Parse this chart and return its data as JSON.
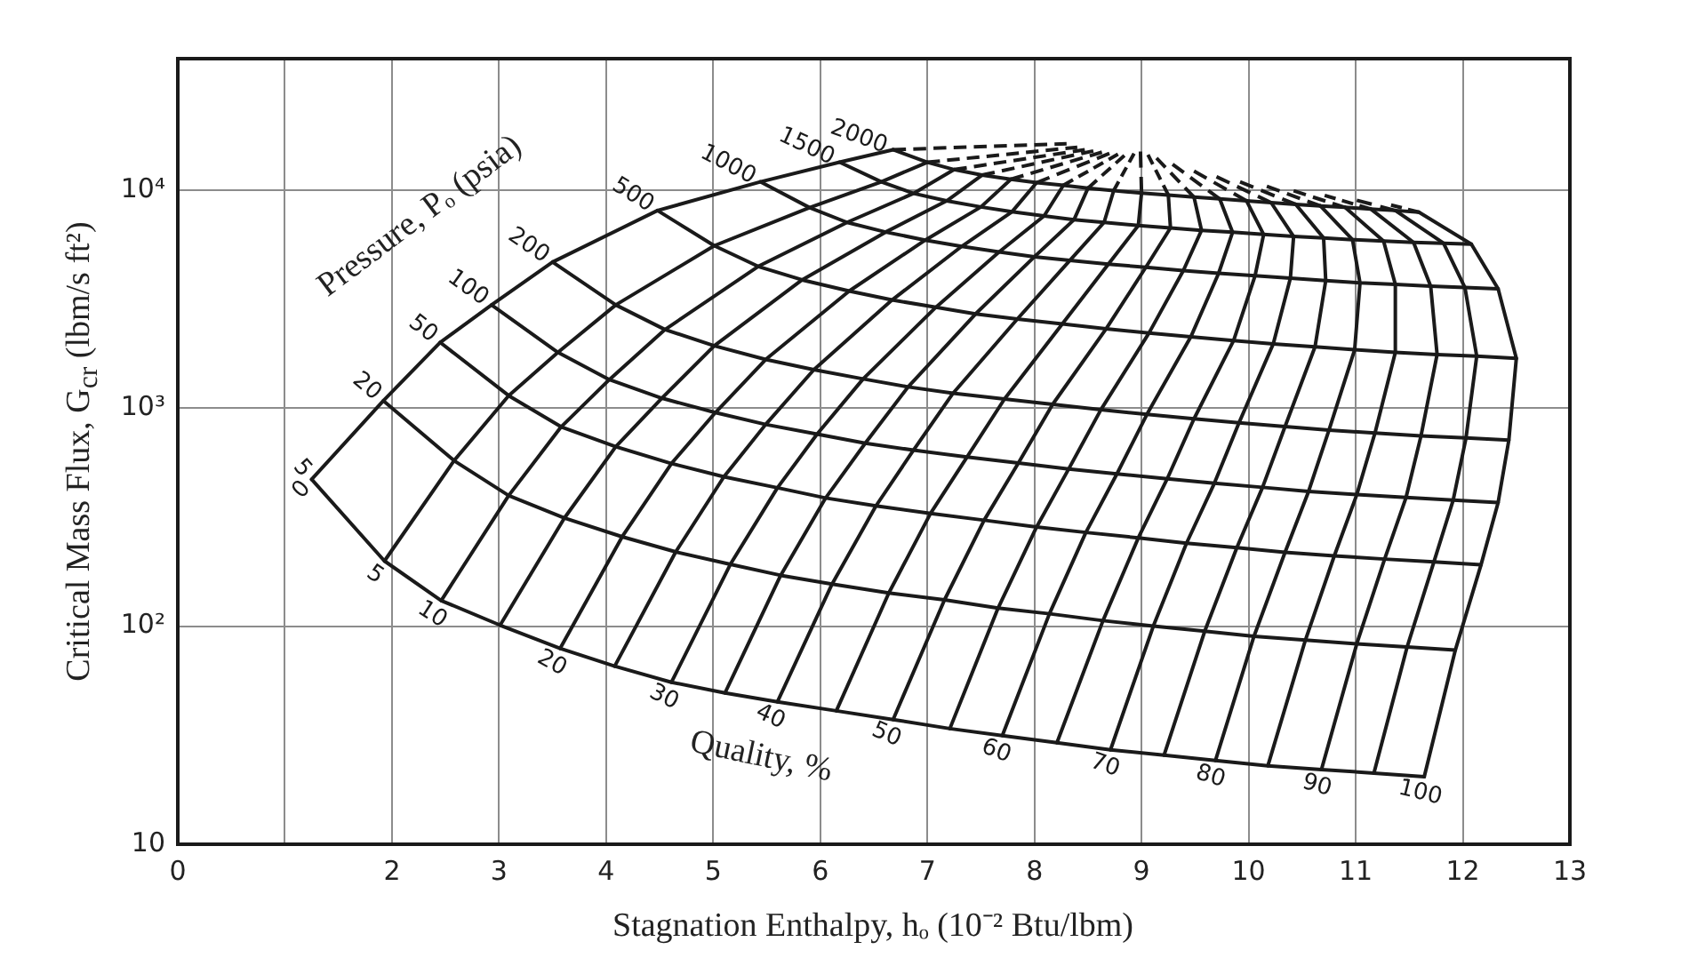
{
  "chart_data": {
    "type": "line",
    "log": "y",
    "grid": true,
    "line_style": "solid",
    "xlabel": "Stagnation Enthalpy, hₒ (10⁻² Btu/lbm)",
    "ylabel": "Critical Mass Flux, G$_{cr}$ (lbm/s ft²)",
    "xlim": [
      0,
      13
    ],
    "ylim": [
      10,
      40000
    ],
    "xticks": [
      0,
      {
        "value": 1,
        "label": null
      },
      2,
      3,
      4,
      5,
      6,
      7,
      8,
      9,
      10,
      11,
      12,
      13
    ],
    "yticks": [
      10,
      {
        "value": 100,
        "label": "10²"
      },
      {
        "value": 1000,
        "label": "10³"
      },
      {
        "value": 10000,
        "label": "10⁴"
      }
    ],
    "annotations": [
      "Pressure, Pₒ (psia)",
      "Quality, %"
    ],
    "series": [
      {
        "color": "#1a1a1a",
        "line_style": "dashed",
        "x": [
          6.68,
          8.3
        ],
        "values": [
          15300,
          16300
        ]
      },
      {
        "color": "#1a1a1a",
        "line_style": "dashed",
        "x": [
          7.0,
          8.4
        ],
        "values": [
          13400,
          15700
        ]
      },
      {
        "color": "#1a1a1a",
        "line_style": "dashed",
        "x": [
          7.25,
          8.47
        ],
        "values": [
          12400,
          15300
        ]
      },
      {
        "color": "#1a1a1a",
        "line_style": "dashed",
        "x": [
          7.51,
          8.55
        ],
        "values": [
          11700,
          15100
        ]
      },
      {
        "color": "#1a1a1a",
        "line_style": "dashed",
        "x": [
          7.78,
          8.63
        ],
        "values": [
          11200,
          14900
        ]
      },
      {
        "color": "#1a1a1a",
        "line_style": "dashed",
        "x": [
          8.02,
          8.7
        ],
        "values": [
          10800,
          14700
        ]
      },
      {
        "color": "#1a1a1a",
        "line_style": "dashed",
        "x": [
          8.27,
          8.78
        ],
        "values": [
          10500,
          14600
        ]
      },
      {
        "color": "#1a1a1a",
        "line_style": "dashed",
        "x": [
          8.5,
          8.84
        ],
        "values": [
          10200,
          14400
        ]
      },
      {
        "color": "#1a1a1a",
        "line_style": "dashed",
        "x": [
          8.74,
          8.93
        ],
        "values": [
          9930,
          14700
        ]
      },
      {
        "color": "#1a1a1a",
        "line_style": "dashed",
        "x": [
          9.0,
          8.99
        ],
        "values": [
          9680,
          15000
        ]
      },
      {
        "color": "#1a1a1a",
        "line_style": "dashed",
        "x": [
          9.25,
          9.06
        ],
        "values": [
          9480,
          14500
        ]
      },
      {
        "color": "#1a1a1a",
        "line_style": "dashed",
        "x": [
          9.49,
          9.14
        ],
        "values": [
          9270,
          14000
        ]
      },
      {
        "color": "#1a1a1a",
        "line_style": "dashed",
        "x": [
          9.73,
          9.29
        ],
        "values": [
          9100,
          13100
        ]
      },
      {
        "color": "#1a1a1a",
        "line_style": "dashed",
        "x": [
          9.98,
          9.49
        ],
        "values": [
          8920,
          12200
        ]
      },
      {
        "color": "#1a1a1a",
        "line_style": "dashed",
        "x": [
          10.21,
          9.7
        ],
        "values": [
          8750,
          11500
        ]
      },
      {
        "color": "#1a1a1a",
        "line_style": "dashed",
        "x": [
          10.44,
          9.92
        ],
        "values": [
          8590,
          10900
        ]
      },
      {
        "color": "#1a1a1a",
        "line_style": "dashed",
        "x": [
          10.67,
          10.17
        ],
        "values": [
          8450,
          10400
        ]
      },
      {
        "color": "#1a1a1a",
        "line_style": "dashed",
        "x": [
          10.9,
          10.42
        ],
        "values": [
          8320,
          9910
        ]
      },
      {
        "color": "#1a1a1a",
        "line_style": "dashed",
        "x": [
          11.14,
          10.71
        ],
        "values": [
          8180,
          9440
        ]
      },
      {
        "color": "#1a1a1a",
        "line_style": "dashed",
        "x": [
          11.37,
          11.01
        ],
        "values": [
          8050,
          8970
        ]
      },
      {
        "color": "#1a1a1a",
        "line_style": "dashed",
        "x": [
          11.59,
          11.33
        ],
        "values": [
          7910,
          8530
        ]
      },
      {
        "name": "0",
        "color": "#1a1a1a",
        "x": [
          1.25,
          1.92,
          2.45,
          2.93,
          3.5,
          4.48,
          5.44,
          6.18,
          6.68
        ],
        "values": [
          471,
          1080,
          2000,
          2970,
          4670,
          8050,
          10900,
          13400,
          15300
        ]
      },
      {
        "name": "5",
        "color": "#1a1a1a",
        "x": [
          1.93,
          2.58,
          3.09,
          3.55,
          4.09,
          5.01,
          5.9,
          6.57,
          7.0
        ],
        "values": [
          199,
          574,
          1140,
          1800,
          2970,
          5550,
          8300,
          10900,
          13400
        ]
      },
      {
        "name": "10",
        "color": "#1a1a1a",
        "x": [
          2.46,
          3.09,
          3.58,
          4.03,
          4.55,
          5.42,
          6.25,
          6.87,
          7.25
        ],
        "values": [
          131,
          397,
          820,
          1350,
          2290,
          4460,
          7100,
          9640,
          12400
        ]
      },
      {
        "color": "#1a1a1a",
        "x": [
          3.01,
          3.61,
          4.09,
          4.52,
          5.01,
          5.83,
          6.61,
          7.18,
          7.51
        ],
        "values": [
          101,
          313,
          665,
          1110,
          1930,
          3870,
          6410,
          8910,
          11700
        ]
      },
      {
        "name": "20",
        "color": "#1a1a1a",
        "x": [
          3.57,
          4.15,
          4.61,
          5.02,
          5.49,
          6.27,
          6.98,
          7.5,
          7.78
        ],
        "values": [
          79,
          257,
          557,
          953,
          1670,
          3440,
          5890,
          8360,
          11200
        ]
      },
      {
        "color": "#1a1a1a",
        "x": [
          4.08,
          4.65,
          5.1,
          5.49,
          5.94,
          6.67,
          7.32,
          7.79,
          8.02
        ],
        "values": [
          65.5,
          219,
          484,
          841,
          1500,
          3130,
          5510,
          7940,
          10800
        ]
      },
      {
        "name": "30",
        "color": "#1a1a1a",
        "x": [
          4.61,
          5.16,
          5.6,
          5.97,
          6.4,
          7.08,
          7.67,
          8.09,
          8.27
        ],
        "values": [
          55.3,
          192,
          431,
          759,
          1360,
          2900,
          5200,
          7600,
          10500
        ]
      },
      {
        "color": "#1a1a1a",
        "x": [
          5.11,
          5.63,
          6.05,
          6.42,
          6.82,
          7.45,
          8.0,
          8.37,
          8.5
        ],
        "values": [
          49.4,
          171,
          387,
          690,
          1250,
          2700,
          4940,
          7310,
          10200
        ]
      },
      {
        "name": "40",
        "color": "#1a1a1a",
        "x": [
          5.6,
          6.11,
          6.52,
          6.87,
          7.24,
          7.84,
          8.33,
          8.65,
          8.74
        ],
        "values": [
          45.0,
          156,
          356,
          641,
          1170,
          2560,
          4750,
          7100,
          9930
        ]
      },
      {
        "color": "#1a1a1a",
        "x": [
          6.15,
          6.64,
          7.03,
          7.37,
          7.72,
          8.26,
          8.69,
          8.97,
          9.0
        ],
        "values": [
          40.9,
          142,
          329,
          596,
          1100,
          2430,
          4570,
          6870,
          9680
        ]
      },
      {
        "name": "50",
        "color": "#1a1a1a",
        "x": [
          6.68,
          7.16,
          7.53,
          7.85,
          8.17,
          8.67,
          9.04,
          9.27,
          9.25
        ],
        "values": [
          37.3,
          132,
          306,
          560,
          1040,
          2310,
          4420,
          6700,
          9480
        ]
      },
      {
        "color": "#1a1a1a",
        "x": [
          7.21,
          7.66,
          8.02,
          8.32,
          8.62,
          9.07,
          9.39,
          9.56,
          9.49
        ],
        "values": [
          33.9,
          121,
          285,
          526,
          982,
          2210,
          4270,
          6530,
          9270
        ]
      },
      {
        "name": "60",
        "color": "#1a1a1a",
        "x": [
          7.7,
          8.14,
          8.48,
          8.77,
          9.05,
          9.46,
          9.72,
          9.85,
          9.73
        ],
        "values": [
          31.5,
          114,
          269,
          499,
          935,
          2120,
          4150,
          6400,
          9100
        ]
      },
      {
        "color": "#1a1a1a",
        "x": [
          8.21,
          8.64,
          8.97,
          9.24,
          9.49,
          9.86,
          10.06,
          10.14,
          9.98
        ],
        "values": [
          29.2,
          106,
          254,
          474,
          893,
          2040,
          4040,
          6250,
          8920
        ]
      },
      {
        "name": "70",
        "color": "#1a1a1a",
        "x": [
          8.71,
          9.11,
          9.42,
          9.68,
          9.91,
          10.23,
          10.39,
          10.42,
          10.21
        ],
        "values": [
          27.1,
          100,
          240,
          452,
          855,
          1970,
          3940,
          6120,
          8750
        ]
      },
      {
        "color": "#1a1a1a",
        "x": [
          9.21,
          9.59,
          9.89,
          10.13,
          10.34,
          10.62,
          10.72,
          10.7,
          10.44
        ],
        "values": [
          25.6,
          94.8,
          229,
          433,
          822,
          1910,
          3840,
          6030,
          8590
        ]
      },
      {
        "name": "80",
        "color": "#1a1a1a",
        "x": [
          9.69,
          10.05,
          10.34,
          10.56,
          10.75,
          10.99,
          11.04,
          10.97,
          10.67
        ],
        "values": [
          24.2,
          89.9,
          218,
          415,
          792,
          1850,
          3750,
          5920,
          8450
        ]
      },
      {
        "color": "#1a1a1a",
        "x": [
          10.18,
          10.53,
          10.8,
          11.01,
          11.18,
          11.37,
          11.37,
          11.26,
          10.9
        ],
        "values": [
          22.9,
          86.3,
          210,
          401,
          769,
          1800,
          3690,
          5830,
          8320
        ]
      },
      {
        "name": "90",
        "color": "#1a1a1a",
        "x": [
          10.68,
          11.01,
          11.27,
          11.47,
          11.61,
          11.76,
          11.7,
          11.54,
          11.14
        ],
        "values": [
          22.0,
          83.0,
          203,
          389,
          746,
          1760,
          3620,
          5750,
          8180
        ]
      },
      {
        "color": "#1a1a1a",
        "x": [
          11.17,
          11.48,
          11.73,
          11.91,
          12.03,
          12.13,
          12.02,
          11.82,
          11.37
        ],
        "values": [
          21.2,
          80.2,
          197,
          378,
          729,
          1730,
          3570,
          5700,
          8050
        ]
      },
      {
        "name": "100",
        "color": "#1a1a1a",
        "x": [
          11.64,
          11.93,
          12.17,
          12.33,
          12.43,
          12.5,
          12.33,
          12.08,
          11.59
        ],
        "values": [
          20.4,
          77.6,
          191,
          369,
          713,
          1690,
          3520,
          5640,
          7910
        ]
      },
      {
        "name": "5",
        "color": "#1a1a1a",
        "x": [
          1.25,
          1.93,
          2.46,
          3.01,
          3.57,
          4.08,
          4.61,
          5.11,
          5.6,
          6.15,
          6.68,
          7.21,
          7.7,
          8.21,
          8.71,
          9.21,
          9.69,
          10.18,
          10.68,
          11.17,
          11.64
        ],
        "values": [
          471,
          199,
          131,
          101,
          79,
          65.5,
          55.3,
          49.4,
          45.0,
          40.9,
          37.3,
          33.9,
          31.5,
          29.2,
          27.1,
          25.6,
          24.2,
          22.9,
          22.0,
          21.2,
          20.4
        ]
      },
      {
        "name": "20",
        "color": "#1a1a1a",
        "x": [
          1.92,
          2.58,
          3.09,
          3.61,
          4.15,
          4.65,
          5.16,
          5.63,
          6.11,
          6.64,
          7.16,
          7.66,
          8.14,
          8.64,
          9.11,
          9.59,
          10.05,
          10.53,
          11.01,
          11.48,
          11.93
        ],
        "values": [
          1080,
          574,
          397,
          313,
          257,
          219,
          192,
          171,
          156,
          142,
          132,
          121,
          114,
          106,
          100,
          94.8,
          89.9,
          86.3,
          83.0,
          80.2,
          77.6
        ]
      },
      {
        "name": "50",
        "color": "#1a1a1a",
        "x": [
          2.45,
          3.09,
          3.58,
          4.09,
          4.61,
          5.1,
          5.6,
          6.05,
          6.52,
          7.03,
          7.53,
          8.02,
          8.48,
          8.97,
          9.42,
          9.89,
          10.34,
          10.8,
          11.27,
          11.73,
          12.17
        ],
        "values": [
          2000,
          1140,
          820,
          665,
          557,
          484,
          431,
          387,
          356,
          329,
          306,
          285,
          269,
          254,
          240,
          229,
          218,
          210,
          203,
          197,
          191
        ]
      },
      {
        "name": "100",
        "color": "#1a1a1a",
        "x": [
          2.93,
          3.55,
          4.03,
          4.52,
          5.02,
          5.49,
          5.97,
          6.42,
          6.87,
          7.37,
          7.85,
          8.32,
          8.77,
          9.24,
          9.68,
          10.13,
          10.56,
          11.01,
          11.47,
          11.91,
          12.33
        ],
        "values": [
          2970,
          1800,
          1350,
          1110,
          953,
          841,
          759,
          690,
          641,
          596,
          560,
          526,
          499,
          474,
          452,
          433,
          415,
          401,
          389,
          378,
          369
        ]
      },
      {
        "name": "200",
        "color": "#1a1a1a",
        "x": [
          3.5,
          4.09,
          4.55,
          5.01,
          5.49,
          5.94,
          6.4,
          6.82,
          7.24,
          7.72,
          8.17,
          8.62,
          9.05,
          9.49,
          9.91,
          10.34,
          10.75,
          11.18,
          11.61,
          12.03,
          12.43
        ],
        "values": [
          4670,
          2970,
          2290,
          1930,
          1670,
          1500,
          1360,
          1250,
          1170,
          1100,
          1040,
          982,
          935,
          893,
          855,
          822,
          792,
          769,
          746,
          729,
          713
        ]
      },
      {
        "name": "500",
        "color": "#1a1a1a",
        "x": [
          4.48,
          5.01,
          5.42,
          5.83,
          6.27,
          6.67,
          7.08,
          7.45,
          7.84,
          8.26,
          8.67,
          9.07,
          9.46,
          9.86,
          10.23,
          10.62,
          10.99,
          11.37,
          11.76,
          12.13,
          12.5
        ],
        "values": [
          8050,
          5550,
          4460,
          3870,
          3440,
          3130,
          2900,
          2700,
          2560,
          2430,
          2310,
          2210,
          2120,
          2040,
          1970,
          1910,
          1850,
          1800,
          1760,
          1730,
          1690
        ]
      },
      {
        "name": "1000",
        "color": "#1a1a1a",
        "x": [
          5.44,
          5.9,
          6.25,
          6.61,
          6.98,
          7.32,
          7.67,
          8.0,
          8.33,
          8.69,
          9.04,
          9.39,
          9.72,
          10.06,
          10.39,
          10.72,
          11.04,
          11.37,
          11.7,
          12.02,
          12.33
        ],
        "values": [
          10900,
          8300,
          7100,
          6410,
          5890,
          5510,
          5200,
          4940,
          4750,
          4570,
          4420,
          4270,
          4150,
          4040,
          3940,
          3840,
          3750,
          3690,
          3620,
          3570,
          3520
        ]
      },
      {
        "name": "1500",
        "color": "#1a1a1a",
        "x": [
          6.18,
          6.57,
          6.87,
          7.18,
          7.5,
          7.79,
          8.09,
          8.37,
          8.65,
          8.97,
          9.27,
          9.56,
          9.85,
          10.14,
          10.42,
          10.7,
          10.97,
          11.26,
          11.54,
          11.82,
          12.08
        ],
        "values": [
          13400,
          10900,
          9640,
          8910,
          8360,
          7940,
          7600,
          7310,
          7100,
          6870,
          6700,
          6530,
          6400,
          6250,
          6120,
          6030,
          5920,
          5830,
          5750,
          5700,
          5640
        ]
      },
      {
        "name": "2000",
        "color": "#1a1a1a",
        "x": [
          6.68,
          7.0,
          7.25,
          7.51,
          7.78,
          8.02,
          8.27,
          8.5,
          8.74,
          9.0,
          9.25,
          9.49,
          9.73,
          9.98,
          10.21,
          10.44,
          10.67,
          10.9,
          11.14,
          11.37,
          11.59
        ],
        "values": [
          15300,
          13400,
          12400,
          11700,
          11200,
          10800,
          10500,
          10200,
          9930,
          9680,
          9480,
          9270,
          9100,
          8920,
          8750,
          8590,
          8450,
          8320,
          8180,
          8050,
          7910
        ]
      }
    ]
  }
}
